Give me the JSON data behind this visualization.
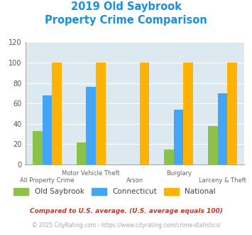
{
  "title_line1": "2019 Old Saybrook",
  "title_line2": "Property Crime Comparison",
  "title_color": "#1a8fe3",
  "old_saybrook": [
    33,
    22,
    0,
    15,
    38
  ],
  "connecticut": [
    68,
    76,
    0,
    54,
    70
  ],
  "national": [
    100,
    100,
    100,
    100,
    100
  ],
  "colors": {
    "old_saybrook": "#8bc34a",
    "connecticut": "#42a5f5",
    "national": "#ffb300"
  },
  "ylim": [
    0,
    120
  ],
  "yticks": [
    0,
    20,
    40,
    60,
    80,
    100,
    120
  ],
  "background_color": "#dce9f0",
  "legend_labels": [
    "Old Saybrook",
    "Connecticut",
    "National"
  ],
  "top_xlabels": {
    "1": "Motor Vehicle Theft",
    "3": "Burglary"
  },
  "bottom_xlabels": {
    "0": "All Property Crime",
    "2": "Arson",
    "4": "Larceny & Theft"
  },
  "footnote1": "Compared to U.S. average. (U.S. average equals 100)",
  "footnote2": "© 2025 CityRating.com - https://www.cityrating.com/crime-statistics/",
  "footnote1_color": "#c0392b",
  "footnote2_color": "#aaaaaa",
  "footnote2_link_color": "#42a5f5"
}
